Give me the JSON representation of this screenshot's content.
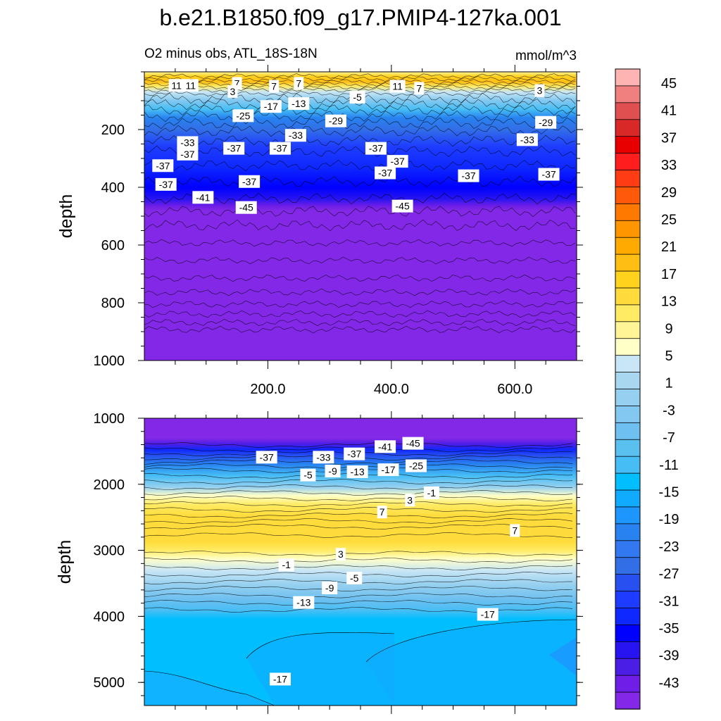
{
  "chart_data": {
    "type": "heatmap",
    "title": "b.e21.B1850.f09_g17.PMIP4-127ka.001",
    "units": "mmol/m^3",
    "subtitle_left": "O2 minus obs, ATL_18S-18N",
    "colorbar": {
      "tick_labels": [
        "45",
        "41",
        "37",
        "33",
        "29",
        "25",
        "21",
        "17",
        "13",
        "9",
        "5",
        "1",
        "-3",
        "-7",
        "-11",
        "-15",
        "-19",
        "-23",
        "-27",
        "-31",
        "-35",
        "-39",
        "-43"
      ],
      "colors": [
        "#FFB4B4",
        "#F08080",
        "#E05050",
        "#D82828",
        "#E80000",
        "#FF1E1E",
        "#FF3C14",
        "#FF5A0A",
        "#FF7800",
        "#FF9600",
        "#FFAA00",
        "#FFBE14",
        "#FFD21E",
        "#FFDC3C",
        "#FFEB64",
        "#FFF596",
        "#FFFFC8",
        "#C8E6F5",
        "#AAD7F0",
        "#96D0F0",
        "#82C8F0",
        "#6EC0F0",
        "#5AC0F0",
        "#46BEF5",
        "#00BEFF",
        "#10AAFF",
        "#1E96FF",
        "#2882F0",
        "#3278F0",
        "#326EE6",
        "#2850F0",
        "#1E3CFF",
        "#0F28FF",
        "#0000FF",
        "#2814F0",
        "#4B1EE6",
        "#6E1EE6",
        "#8228E6"
      ]
    },
    "panels": [
      {
        "name": "upper",
        "ylabel": "depth",
        "ylim": [
          0,
          1000
        ],
        "xlim": [
          0,
          700
        ],
        "y_tick_labels": [
          "200",
          "400",
          "600",
          "800",
          "1000"
        ],
        "x_tick_labels": [
          "200.0",
          "400.0",
          "600.0"
        ],
        "contour_labels": [
          {
            "text": "11",
            "x": 52,
            "y": 47
          },
          {
            "text": "11",
            "x": 75,
            "y": 47
          },
          {
            "text": "7",
            "x": 150,
            "y": 40
          },
          {
            "text": "7",
            "x": 210,
            "y": 50
          },
          {
            "text": "7",
            "x": 250,
            "y": 40
          },
          {
            "text": "11",
            "x": 410,
            "y": 50
          },
          {
            "text": "7",
            "x": 445,
            "y": 57
          },
          {
            "text": "3",
            "x": 143,
            "y": 68
          },
          {
            "text": "3",
            "x": 640,
            "y": 65
          },
          {
            "text": "-5",
            "x": 345,
            "y": 88
          },
          {
            "text": "-17",
            "x": 205,
            "y": 120
          },
          {
            "text": "-13",
            "x": 250,
            "y": 110
          },
          {
            "text": "-25",
            "x": 160,
            "y": 152
          },
          {
            "text": "-33",
            "x": 70,
            "y": 245
          },
          {
            "text": "-33",
            "x": 245,
            "y": 220
          },
          {
            "text": "-33",
            "x": 620,
            "y": 235
          },
          {
            "text": "-29",
            "x": 310,
            "y": 170
          },
          {
            "text": "-29",
            "x": 650,
            "y": 175
          },
          {
            "text": "-37",
            "x": 220,
            "y": 265
          },
          {
            "text": "-37",
            "x": 145,
            "y": 265
          },
          {
            "text": "-37",
            "x": 30,
            "y": 325
          },
          {
            "text": "-37",
            "x": 70,
            "y": 285
          },
          {
            "text": "-37",
            "x": 170,
            "y": 380
          },
          {
            "text": "-37",
            "x": 375,
            "y": 265
          },
          {
            "text": "-37",
            "x": 410,
            "y": 310
          },
          {
            "text": "-37",
            "x": 390,
            "y": 350
          },
          {
            "text": "-37",
            "x": 655,
            "y": 355
          },
          {
            "text": "-37",
            "x": 525,
            "y": 360
          },
          {
            "text": "-37",
            "x": 35,
            "y": 390
          },
          {
            "text": "-41",
            "x": 95,
            "y": 435
          },
          {
            "text": "-45",
            "x": 165,
            "y": 470
          },
          {
            "text": "-45",
            "x": 418,
            "y": 465
          }
        ]
      },
      {
        "name": "lower",
        "ylabel": "depth",
        "ylim": [
          1000,
          5350
        ],
        "xlim": [
          0,
          700
        ],
        "y_tick_labels": [
          "1000",
          "2000",
          "3000",
          "4000",
          "5000"
        ],
        "contour_labels": [
          {
            "text": "-37",
            "x": 198,
            "y": 1590
          },
          {
            "text": "-33",
            "x": 290,
            "y": 1590
          },
          {
            "text": "-37",
            "x": 340,
            "y": 1540
          },
          {
            "text": "-41",
            "x": 390,
            "y": 1430
          },
          {
            "text": "-45",
            "x": 435,
            "y": 1380
          },
          {
            "text": "-25",
            "x": 440,
            "y": 1720
          },
          {
            "text": "-5",
            "x": 265,
            "y": 1860
          },
          {
            "text": "-9",
            "x": 305,
            "y": 1800
          },
          {
            "text": "-13",
            "x": 345,
            "y": 1810
          },
          {
            "text": "-17",
            "x": 395,
            "y": 1780
          },
          {
            "text": "3",
            "x": 430,
            "y": 2240
          },
          {
            "text": "-1",
            "x": 465,
            "y": 2130
          },
          {
            "text": "7",
            "x": 385,
            "y": 2420
          },
          {
            "text": "7",
            "x": 600,
            "y": 2700
          },
          {
            "text": "3",
            "x": 318,
            "y": 3060
          },
          {
            "text": "-1",
            "x": 230,
            "y": 3220
          },
          {
            "text": "-5",
            "x": 340,
            "y": 3420
          },
          {
            "text": "-9",
            "x": 300,
            "y": 3570
          },
          {
            "text": "-13",
            "x": 258,
            "y": 3790
          },
          {
            "text": "-17",
            "x": 556,
            "y": 3970
          },
          {
            "text": "-17",
            "x": 220,
            "y": 4950
          }
        ]
      }
    ]
  }
}
